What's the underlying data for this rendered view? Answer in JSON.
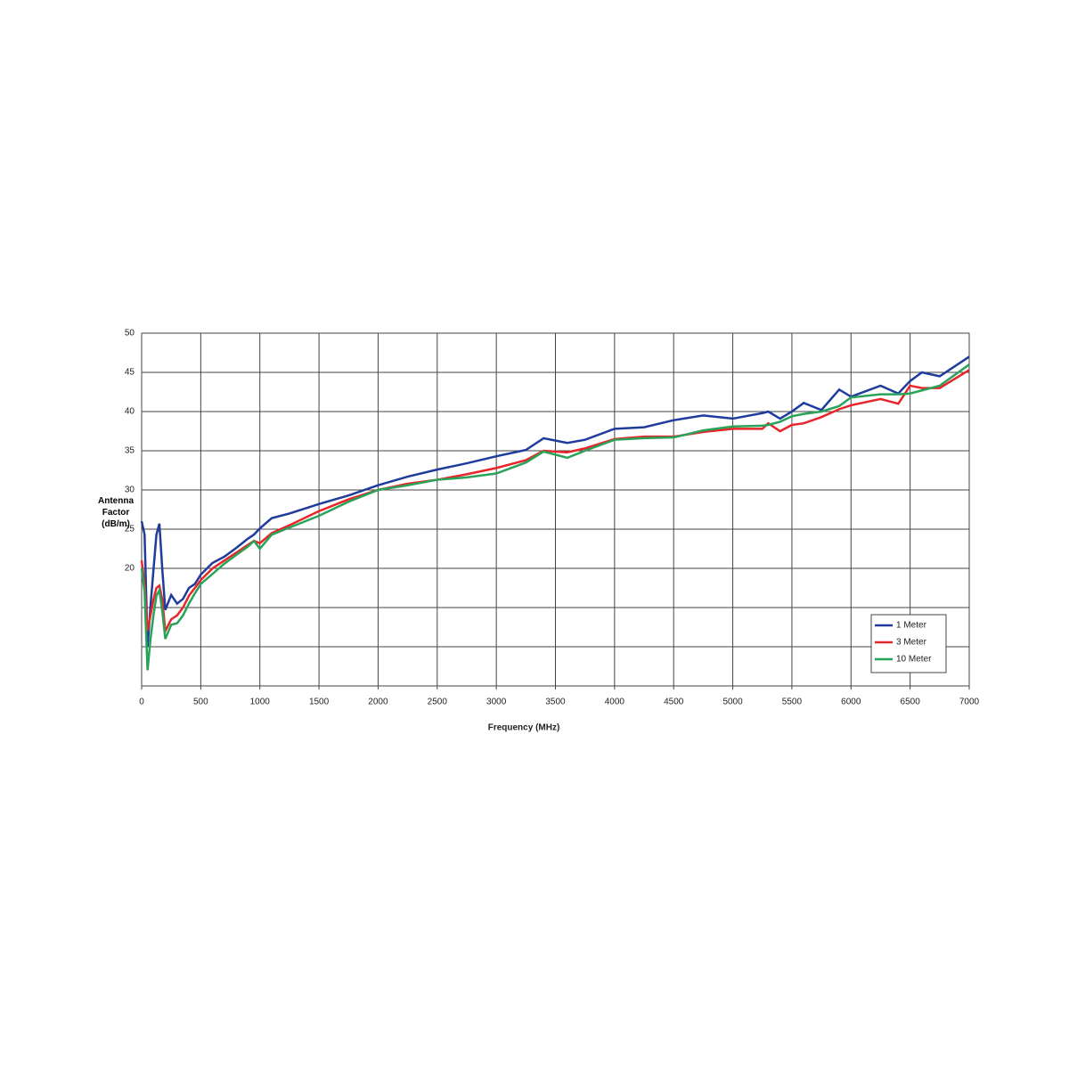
{
  "chart_data": {
    "type": "line",
    "x_label": "Frequency (MHz)",
    "y_label": "Antenna Factor (dB/m)",
    "x": [
      0,
      25,
      50,
      75,
      100,
      125,
      150,
      175,
      200,
      250,
      300,
      350,
      400,
      450,
      500,
      600,
      700,
      800,
      900,
      950,
      1000,
      1100,
      1250,
      1500,
      1750,
      2000,
      2250,
      2500,
      2750,
      3000,
      3250,
      3400,
      3600,
      3750,
      4000,
      4250,
      4500,
      4750,
      5000,
      5250,
      5300,
      5400,
      5500,
      5600,
      5750,
      5900,
      6000,
      6250,
      6400,
      6500,
      6600,
      6750,
      7000
    ],
    "series": [
      {
        "name": "1 Meter",
        "color": "#1f3c9c",
        "values": [
          26,
          24.3,
          10,
          15.2,
          19.8,
          24.3,
          25.7,
          19.8,
          14.7,
          16.6,
          15.5,
          16.1,
          17.5,
          18,
          19.2,
          20.7,
          21.5,
          22.6,
          23.8,
          24.3,
          25.1,
          26.4,
          27,
          28.2,
          29.3,
          30.6,
          31.7,
          32.6,
          33.4,
          34.3,
          35.1,
          36.6,
          36,
          36.4,
          37.8,
          38,
          38.9,
          39.5,
          39.1,
          39.8,
          40,
          39.1,
          40,
          41.1,
          40.2,
          42.8,
          41.9,
          43.3,
          42.3,
          43.9,
          45,
          44.5,
          47
        ]
      },
      {
        "name": "3 Meter",
        "color": "#e8262a",
        "values": [
          21,
          18,
          12,
          14,
          16,
          17.5,
          17.8,
          16,
          12,
          13.5,
          14,
          15,
          16.5,
          17.5,
          18.5,
          20,
          21,
          22,
          23,
          23.5,
          23.2,
          24.5,
          25.5,
          27.3,
          28.8,
          30,
          30.8,
          31.3,
          32,
          32.8,
          33.8,
          35,
          34.8,
          35.3,
          36.5,
          36.8,
          36.8,
          37.4,
          37.8,
          37.8,
          38.5,
          37.5,
          38.3,
          38.5,
          39.3,
          40.3,
          40.8,
          41.6,
          41,
          43.3,
          43,
          43,
          45.3
        ]
      },
      {
        "name": "10 Meter",
        "color": "#2aa35a",
        "values": [
          20,
          17,
          7,
          11,
          14,
          16.5,
          17.2,
          14.5,
          11,
          12.8,
          13,
          14,
          15.5,
          16.8,
          18,
          19.3,
          20.6,
          21.7,
          22.8,
          23.5,
          22.5,
          24.3,
          25.2,
          26.7,
          28.5,
          30,
          30.6,
          31.3,
          31.6,
          32.1,
          33.5,
          34.9,
          34.1,
          35,
          36.4,
          36.6,
          36.7,
          37.6,
          38.1,
          38.2,
          38.3,
          38.7,
          39.4,
          39.7,
          40,
          40.7,
          41.8,
          42.2,
          42.2,
          42.3,
          42.7,
          43.3,
          46
        ]
      }
    ],
    "xlim": [
      0,
      7000
    ],
    "xticks": [
      0,
      500,
      1000,
      1500,
      2000,
      2500,
      3000,
      3500,
      4000,
      4500,
      5000,
      5500,
      6000,
      6500,
      7000
    ],
    "ylim": [
      5,
      50
    ],
    "yticks": [
      20,
      25,
      30,
      35,
      40,
      45,
      50
    ],
    "minor_grid": [
      10,
      15
    ],
    "grid": true,
    "legend": "lower right"
  }
}
